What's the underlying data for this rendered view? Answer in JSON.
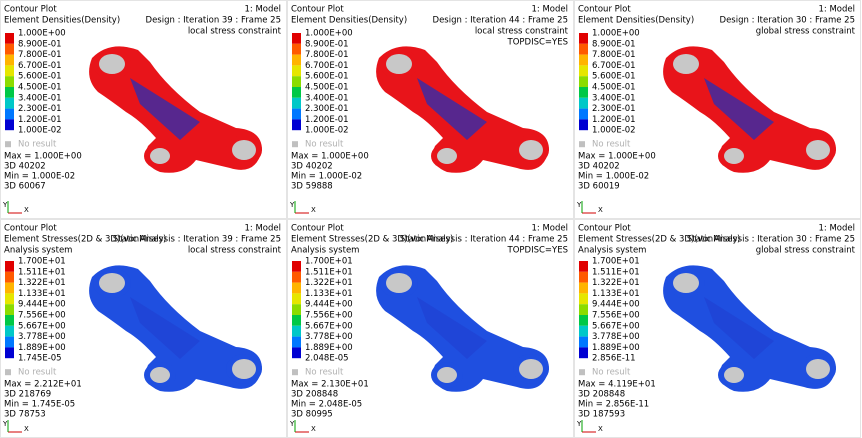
{
  "panels": [
    {
      "plot_type": "Contour Plot",
      "result": "Element Densities(Density)",
      "model": "1: Model",
      "design": "Design : Iteration 39 : Frame 25",
      "notes": [
        "local stress constraint"
      ],
      "legend": [
        "1.000E+00",
        "8.900E-01",
        "7.800E-01",
        "6.700E-01",
        "5.600E-01",
        "4.500E-01",
        "3.400E-01",
        "2.300E-01",
        "1.200E-01",
        "1.000E-02"
      ],
      "no_result": "No result",
      "max": "Max = 1.000E+00",
      "max_id": "3D 40202",
      "min": "Min = 1.000E-02",
      "min_id": "3D 60067",
      "triad": [
        "Y",
        "X"
      ]
    },
    {
      "plot_type": "Contour Plot",
      "result": "Element Densities(Density)",
      "model": "1: Model",
      "design": "Design : Iteration 44 : Frame 25",
      "notes": [
        "local stress constraint",
        "TOPDISC=YES"
      ],
      "legend": [
        "1.000E+00",
        "8.900E-01",
        "7.800E-01",
        "6.700E-01",
        "5.600E-01",
        "4.500E-01",
        "3.400E-01",
        "2.300E-01",
        "1.200E-01",
        "1.000E-02"
      ],
      "no_result": "No result",
      "max": "Max = 1.000E+00",
      "max_id": "3D 40202",
      "min": "Min = 1.000E-02",
      "min_id": "3D 59888",
      "triad": [
        "Y",
        "X"
      ]
    },
    {
      "plot_type": "Contour Plot",
      "result": "Element Densities(Density)",
      "model": "1: Model",
      "design": "Design : Iteration 30 : Frame 25",
      "notes": [
        "global stress constraint"
      ],
      "legend": [
        "1.000E+00",
        "8.900E-01",
        "7.800E-01",
        "6.700E-01",
        "5.600E-01",
        "4.500E-01",
        "3.400E-01",
        "2.300E-01",
        "1.200E-01",
        "1.000E-02"
      ],
      "no_result": "No result",
      "max": "Max = 1.000E+00",
      "max_id": "3D 40202",
      "min": "Min = 1.000E-02",
      "min_id": "3D 60019",
      "triad": [
        "Y",
        "X"
      ]
    },
    {
      "plot_type": "Contour Plot",
      "result": "Element Stresses(2D & 3D)(vonMises)",
      "model": "1: Model",
      "design": "Static Analysis : Iteration 39 : Frame 25",
      "system": "Analysis system",
      "notes": [
        "local stress constraint"
      ],
      "legend": [
        "1.700E+01",
        "1.511E+01",
        "1.322E+01",
        "1.133E+01",
        "9.444E+00",
        "7.556E+00",
        "5.667E+00",
        "3.778E+00",
        "1.889E+00",
        "1.745E-05"
      ],
      "no_result": "No result",
      "max": "Max = 2.212E+01",
      "max_id": "3D 218769",
      "min": "Min = 1.745E-05",
      "min_id": "3D 78753",
      "triad": [
        "Y",
        "X"
      ]
    },
    {
      "plot_type": "Contour Plot",
      "result": "Element Stresses(2D & 3D)(vonMises)",
      "model": "1: Model",
      "design": "Static Analysis : Iteration 44 : Frame 25",
      "system": "Analysis system",
      "notes": [
        "TOPDISC=YES"
      ],
      "legend": [
        "1.700E+01",
        "1.511E+01",
        "1.322E+01",
        "1.133E+01",
        "9.444E+00",
        "7.556E+00",
        "5.667E+00",
        "3.778E+00",
        "1.889E+00",
        "2.048E-05"
      ],
      "no_result": "No result",
      "max": "Max = 2.130E+01",
      "max_id": "3D 208848",
      "min": "Min = 2.048E-05",
      "min_id": "3D 80995",
      "triad": [
        "Y",
        "X"
      ]
    },
    {
      "plot_type": "Contour Plot",
      "result": "Element Stresses(2D & 3D)(vonMises)",
      "model": "1: Model",
      "design": "Static Analysis : Iteration 30 : Frame 25",
      "system": "Analysis system",
      "notes": [
        "global stress constraint"
      ],
      "legend": [
        "1.700E+01",
        "1.511E+01",
        "1.322E+01",
        "1.133E+01",
        "9.444E+00",
        "7.556E+00",
        "5.667E+00",
        "3.778E+00",
        "1.889E+00",
        "2.856E-11"
      ],
      "no_result": "No result",
      "max": "Max = 4.119E+01",
      "max_id": "3D 208848",
      "min": "Min = 2.856E-11",
      "min_id": "3D 187593",
      "triad": [
        "Y",
        "X"
      ]
    }
  ]
}
